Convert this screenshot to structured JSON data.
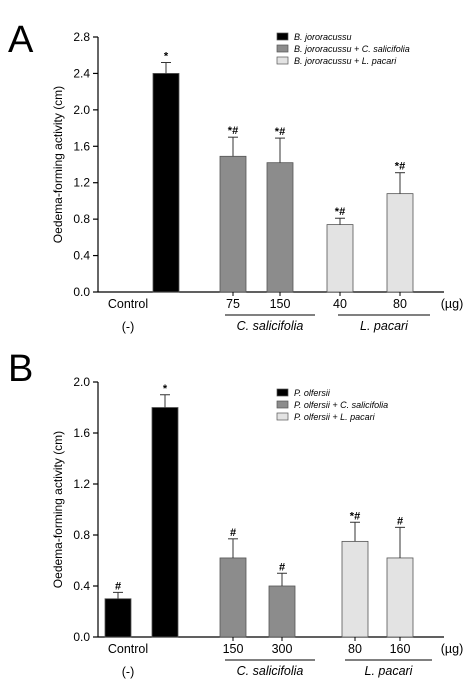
{
  "chart_data": [
    {
      "type": "bar",
      "panel_label": "A",
      "ylabel": "Oedema-forming activity (cm)",
      "ylim": [
        0,
        2.8
      ],
      "yticks": [
        "0.0",
        "0.4",
        "0.8",
        "1.2",
        "1.6",
        "2.0",
        "2.4",
        "2.8"
      ],
      "unit_label": "(µg)",
      "control_label": "Control",
      "control_sub": "(-)",
      "legend_position": "top-right",
      "series": [
        {
          "name": "B. jororacussu",
          "color": "#000000"
        },
        {
          "name": "B. jororacussu + C. salicifolia",
          "color": "#8c8c8c"
        },
        {
          "name": "B. jororacussu + L. pacari",
          "color": "#e3e3e3"
        }
      ],
      "bars": [
        {
          "category": "",
          "value": 2.4,
          "error": 0.12,
          "series": 0,
          "annotation": "*"
        },
        {
          "category": "75",
          "value": 1.49,
          "error": 0.21,
          "series": 1,
          "annotation": "*#"
        },
        {
          "category": "150",
          "value": 1.42,
          "error": 0.27,
          "series": 1,
          "annotation": "*#"
        },
        {
          "category": "40",
          "value": 0.74,
          "error": 0.07,
          "series": 2,
          "annotation": "*#"
        },
        {
          "category": "80",
          "value": 1.08,
          "error": 0.23,
          "series": 2,
          "annotation": "*#"
        }
      ],
      "groups": [
        "C. salicifolia",
        "L. pacari"
      ]
    },
    {
      "type": "bar",
      "panel_label": "B",
      "ylabel": "Oedema-forming activity (cm)",
      "ylim": [
        0,
        2.0
      ],
      "yticks": [
        "0.0",
        "0.4",
        "0.8",
        "1.2",
        "1.6",
        "2.0"
      ],
      "unit_label": "(µg)",
      "control_label": "Control",
      "control_sub": "(-)",
      "legend_position": "top-right",
      "series": [
        {
          "name": "P. olfersii",
          "color": "#000000"
        },
        {
          "name": "P. olfersii + C. salicifolia",
          "color": "#8c8c8c"
        },
        {
          "name": "P. olfersii + L. pacari",
          "color": "#e3e3e3"
        }
      ],
      "bars": [
        {
          "category": "",
          "value": 0.3,
          "error": 0.05,
          "series": 0,
          "annotation": "#"
        },
        {
          "category": "",
          "value": 1.8,
          "error": 0.1,
          "series": 0,
          "annotation": "*"
        },
        {
          "category": "150",
          "value": 0.62,
          "error": 0.15,
          "series": 1,
          "annotation": "#"
        },
        {
          "category": "300",
          "value": 0.4,
          "error": 0.1,
          "series": 1,
          "annotation": "#"
        },
        {
          "category": "80",
          "value": 0.75,
          "error": 0.15,
          "series": 2,
          "annotation": "*#"
        },
        {
          "category": "160",
          "value": 0.62,
          "error": 0.24,
          "series": 2,
          "annotation": "#"
        }
      ],
      "groups": [
        "C. salicifolia",
        "L. pacari"
      ]
    }
  ]
}
